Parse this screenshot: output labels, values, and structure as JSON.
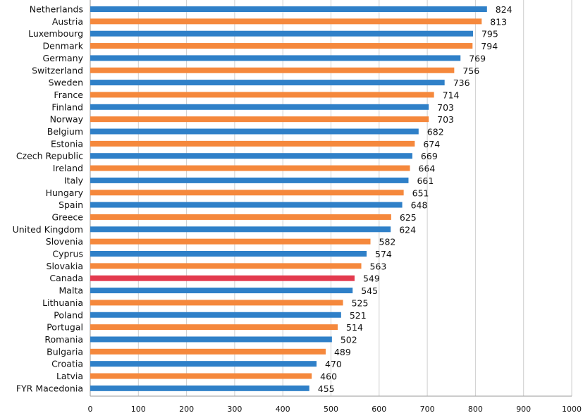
{
  "chart_data": {
    "type": "bar",
    "orientation": "horizontal",
    "title": "",
    "xlabel": "",
    "ylabel": "",
    "xlim": [
      0,
      1000
    ],
    "xticks": [
      0,
      100,
      200,
      300,
      400,
      500,
      600,
      700,
      800,
      900,
      1000
    ],
    "grid": true,
    "categories": [
      "Netherlands",
      "Austria",
      "Luxembourg",
      "Denmark",
      "Germany",
      "Switzerland",
      "Sweden",
      "France",
      "Finland",
      "Norway",
      "Belgium",
      "Estonia",
      "Czech Republic",
      "Ireland",
      "Italy",
      "Hungary",
      "Spain",
      "Greece",
      "United Kingdom",
      "Slovenia",
      "Cyprus",
      "Slovakia",
      "Canada",
      "Malta",
      "Lithuania",
      "Poland",
      "Portugal",
      "Romania",
      "Bulgaria",
      "Croatia",
      "Latvia",
      "FYR Macedonia"
    ],
    "values": [
      824,
      813,
      795,
      794,
      769,
      756,
      736,
      714,
      703,
      703,
      682,
      674,
      669,
      664,
      661,
      651,
      648,
      625,
      624,
      582,
      574,
      563,
      549,
      545,
      525,
      521,
      514,
      502,
      489,
      470,
      460,
      455
    ],
    "bar_colors": [
      "blue",
      "orange",
      "blue",
      "orange",
      "blue",
      "orange",
      "blue",
      "orange",
      "blue",
      "orange",
      "blue",
      "orange",
      "blue",
      "orange",
      "blue",
      "orange",
      "blue",
      "orange",
      "blue",
      "orange",
      "blue",
      "orange",
      "red",
      "blue",
      "orange",
      "blue",
      "orange",
      "blue",
      "orange",
      "blue",
      "orange",
      "blue"
    ],
    "palette": {
      "blue": "#2f80c8",
      "orange": "#f5883c",
      "red": "#e33a4e"
    }
  }
}
